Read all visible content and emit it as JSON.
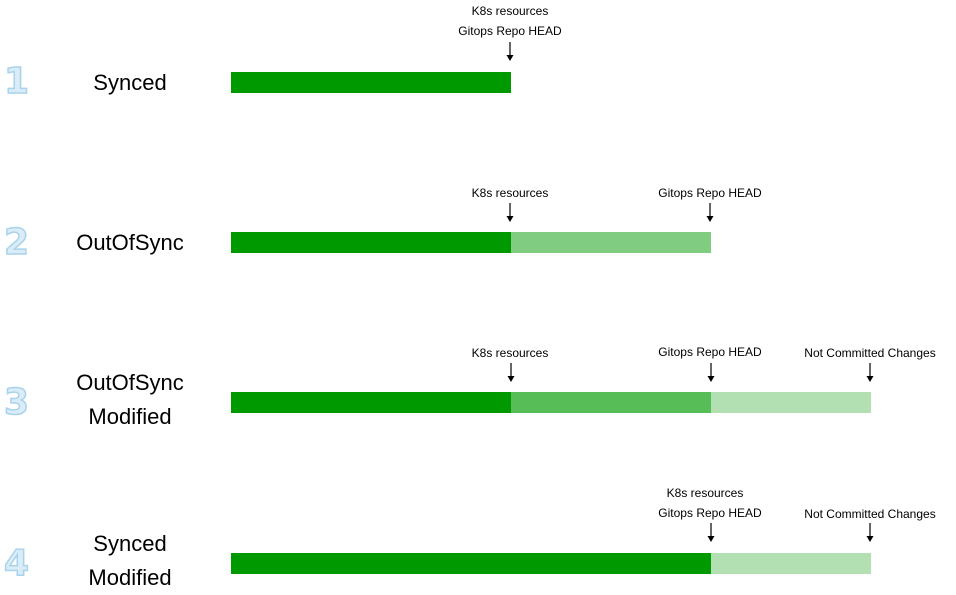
{
  "colors": {
    "dark_green": "#009900",
    "mid_green": "#57be57",
    "light_green": "#80cc80",
    "pale_green": "#b3e0b3",
    "number_fill": "#d9ecf7",
    "number_stroke": "#a9d3ec"
  },
  "rows": [
    {
      "number": "1",
      "state_line1": "Synced",
      "state_line2": "",
      "labels": {
        "k8s": "K8s resources",
        "gitops": "Gitops Repo HEAD"
      }
    },
    {
      "number": "2",
      "state_line1": "OutOfSync",
      "state_line2": "",
      "labels": {
        "k8s": "K8s resources",
        "gitops": "Gitops Repo HEAD"
      }
    },
    {
      "number": "3",
      "state_line1": "OutOfSync",
      "state_line2": "Modified",
      "labels": {
        "k8s": "K8s resources",
        "gitops": "Gitops Repo HEAD",
        "not_committed": "Not Committed Changes"
      }
    },
    {
      "number": "4",
      "state_line1": "Synced",
      "state_line2": "Modified",
      "labels": {
        "k8s": "K8s resources",
        "gitops": "Gitops Repo HEAD",
        "not_committed": "Not Committed Changes"
      }
    }
  ]
}
